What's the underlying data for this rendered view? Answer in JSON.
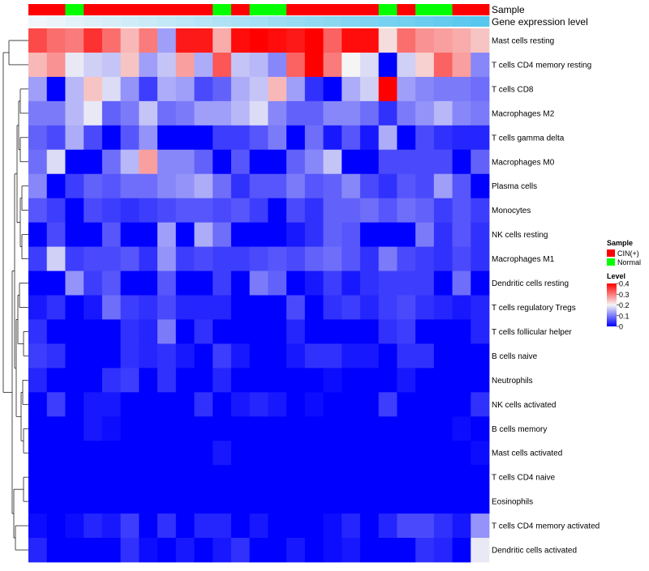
{
  "chart_data": {
    "type": "heatmap",
    "title": "",
    "annotation_labels": {
      "sample": "Sample",
      "expression": "Gene expression level"
    },
    "legend": {
      "sample_title": "Sample",
      "sample_entries": [
        {
          "name": "CIN(+)",
          "color": "#ff0000"
        },
        {
          "name": "Normal",
          "color": "#00ff00"
        }
      ],
      "level_title": "Level",
      "level_ticks": [
        0.4,
        0.3,
        0.2,
        0.1,
        0
      ],
      "level_tick_labels": [
        "0.4",
        "0.3",
        "0.2",
        "0.1",
        "0"
      ],
      "colors": {
        "low": "#0000ff",
        "mid": "#f5f5f5",
        "high": "#ff0000"
      },
      "range": [
        0,
        0.4
      ],
      "placement": "right"
    },
    "sample_groups": [
      "CIN(+)",
      "CIN(+)",
      "Normal",
      "CIN(+)",
      "CIN(+)",
      "CIN(+)",
      "CIN(+)",
      "CIN(+)",
      "CIN(+)",
      "CIN(+)",
      "Normal",
      "CIN(+)",
      "Normal",
      "Normal",
      "CIN(+)",
      "CIN(+)",
      "CIN(+)",
      "CIN(+)",
      "CIN(+)",
      "Normal",
      "CIN(+)",
      "Normal",
      "Normal",
      "CIN(+)",
      "CIN(+)"
    ],
    "rows": [
      "Mast cells resting",
      "T cells CD4 memory resting",
      "T cells CD8",
      "Macrophages M2",
      "T cells gamma delta",
      "Macrophages M0",
      "Plasma cells",
      "Monocytes",
      "NK cells resting",
      "Macrophages M1",
      "Dendritic cells resting",
      "T cells regulatory  Tregs",
      "T cells follicular helper",
      "B cells naive",
      "Neutrophils",
      "NK cells activated",
      "B cells memory",
      "Mast cells activated",
      "T cells CD4 naive",
      "Eosinophils",
      "T cells CD4 memory activated",
      "Dendritic cells activated"
    ],
    "values": [
      [
        0.34,
        0.31,
        0.3,
        0.36,
        0.31,
        0.25,
        0.3,
        0.13,
        0.38,
        0.38,
        0.26,
        0.39,
        0.4,
        0.39,
        0.38,
        0.4,
        0.32,
        0.39,
        0.39,
        0.22,
        0.31,
        0.28,
        0.27,
        0.26,
        0.24
      ],
      [
        0.25,
        0.28,
        0.19,
        0.17,
        0.16,
        0.24,
        0.13,
        0.16,
        0.27,
        0.14,
        0.33,
        0.16,
        0.15,
        0.11,
        0.32,
        0.4,
        0.3,
        0.2,
        0.18,
        0.0,
        0.17,
        0.23,
        0.32,
        0.27,
        0.11
      ],
      [
        0.13,
        0.0,
        0.15,
        0.24,
        0.18,
        0.12,
        0.05,
        0.14,
        0.13,
        0.06,
        0.08,
        0.14,
        0.16,
        0.25,
        0.13,
        0.04,
        0.0,
        0.14,
        0.17,
        0.4,
        0.13,
        0.11,
        0.1,
        0.1,
        0.09
      ],
      [
        0.1,
        0.1,
        0.15,
        0.19,
        0.08,
        0.1,
        0.16,
        0.09,
        0.1,
        0.13,
        0.13,
        0.15,
        0.18,
        0.11,
        0.08,
        0.08,
        0.11,
        0.11,
        0.09,
        0.04,
        0.1,
        0.12,
        0.15,
        0.11,
        0.1
      ],
      [
        0.08,
        0.06,
        0.14,
        0.06,
        0.0,
        0.07,
        0.12,
        0.0,
        0.0,
        0.0,
        0.05,
        0.05,
        0.07,
        0.1,
        0.0,
        0.09,
        0.02,
        0.07,
        0.02,
        0.14,
        0.0,
        0.06,
        0.04,
        0.03,
        0.03
      ],
      [
        0.09,
        0.18,
        0.0,
        0.0,
        0.09,
        0.15,
        0.27,
        0.11,
        0.11,
        0.08,
        0.0,
        0.07,
        0.0,
        0.0,
        0.08,
        0.11,
        0.16,
        0.0,
        0.0,
        0.06,
        0.06,
        0.06,
        0.06,
        0.0,
        0.08
      ],
      [
        0.11,
        0.0,
        0.05,
        0.08,
        0.07,
        0.09,
        0.09,
        0.11,
        0.12,
        0.14,
        0.09,
        0.04,
        0.07,
        0.07,
        0.1,
        0.07,
        0.08,
        0.11,
        0.06,
        0.04,
        0.07,
        0.06,
        0.13,
        0.07,
        0.0
      ],
      [
        0.07,
        0.05,
        0.0,
        0.06,
        0.05,
        0.04,
        0.05,
        0.06,
        0.07,
        0.07,
        0.06,
        0.07,
        0.05,
        0.0,
        0.06,
        0.04,
        0.08,
        0.08,
        0.09,
        0.07,
        0.09,
        0.08,
        0.05,
        0.07,
        0.05
      ],
      [
        0.0,
        0.06,
        0.0,
        0.0,
        0.07,
        0.0,
        0.0,
        0.13,
        0.0,
        0.14,
        0.09,
        0.0,
        0.0,
        0.0,
        0.02,
        0.04,
        0.08,
        0.07,
        0.0,
        0.0,
        0.0,
        0.1,
        0.04,
        0.07,
        0.04
      ],
      [
        0.05,
        0.17,
        0.05,
        0.06,
        0.06,
        0.07,
        0.04,
        0.12,
        0.05,
        0.06,
        0.05,
        0.05,
        0.06,
        0.07,
        0.06,
        0.08,
        0.09,
        0.07,
        0.04,
        0.1,
        0.06,
        0.05,
        0.04,
        0.06,
        0.04
      ],
      [
        0.0,
        0.0,
        0.12,
        0.05,
        0.07,
        0.0,
        0.0,
        0.07,
        0.0,
        0.0,
        0.05,
        0.0,
        0.1,
        0.08,
        0.0,
        0.02,
        0.05,
        0.02,
        0.04,
        0.05,
        0.05,
        0.05,
        0.0,
        0.09,
        0.0
      ],
      [
        0.02,
        0.04,
        0.0,
        0.02,
        0.09,
        0.05,
        0.04,
        0.06,
        0.03,
        0.03,
        0.03,
        0.0,
        0.0,
        0.0,
        0.06,
        0.0,
        0.04,
        0.05,
        0.03,
        0.05,
        0.06,
        0.04,
        0.03,
        0.02,
        0.03
      ],
      [
        0.04,
        0.0,
        0.0,
        0.0,
        0.0,
        0.04,
        0.03,
        0.1,
        0.0,
        0.04,
        0.0,
        0.0,
        0.0,
        0.0,
        0.03,
        0.0,
        0.0,
        0.0,
        0.0,
        0.04,
        0.05,
        0.0,
        0.0,
        0.0,
        0.03
      ],
      [
        0.05,
        0.04,
        0.0,
        0.0,
        0.0,
        0.04,
        0.03,
        0.04,
        0.02,
        0.0,
        0.05,
        0.02,
        0.0,
        0.0,
        0.02,
        0.04,
        0.04,
        0.02,
        0.02,
        0.0,
        0.04,
        0.04,
        0.0,
        0.0,
        0.0
      ],
      [
        0.03,
        0.0,
        0.0,
        0.0,
        0.04,
        0.05,
        0.0,
        0.04,
        0.0,
        0.0,
        0.03,
        0.0,
        0.0,
        0.0,
        0.0,
        0.0,
        0.01,
        0.0,
        0.0,
        0.0,
        0.02,
        0.0,
        0.0,
        0.0,
        0.0
      ],
      [
        0.0,
        0.05,
        0.0,
        0.02,
        0.02,
        0.0,
        0.0,
        0.0,
        0.0,
        0.04,
        0.0,
        0.02,
        0.03,
        0.02,
        0.0,
        0.01,
        0.0,
        0.0,
        0.0,
        0.05,
        0.0,
        0.0,
        0.0,
        0.0,
        0.04
      ],
      [
        0.0,
        0.0,
        0.0,
        0.02,
        0.01,
        0.0,
        0.0,
        0.0,
        0.0,
        0.0,
        0.0,
        0.0,
        0.0,
        0.0,
        0.0,
        0.0,
        0.0,
        0.0,
        0.0,
        0.0,
        0.0,
        0.0,
        0.0,
        0.01,
        0.0
      ],
      [
        0.0,
        0.0,
        0.0,
        0.0,
        0.0,
        0.0,
        0.0,
        0.0,
        0.0,
        0.0,
        0.02,
        0.0,
        0.0,
        0.0,
        0.0,
        0.0,
        0.0,
        0.0,
        0.0,
        0.0,
        0.0,
        0.0,
        0.0,
        0.0,
        0.01
      ],
      [
        0.0,
        0.0,
        0.0,
        0.0,
        0.0,
        0.0,
        0.0,
        0.0,
        0.0,
        0.0,
        0.0,
        0.0,
        0.0,
        0.0,
        0.0,
        0.0,
        0.0,
        0.0,
        0.0,
        0.0,
        0.0,
        0.0,
        0.0,
        0.0,
        0.0
      ],
      [
        0.0,
        0.0,
        0.0,
        0.0,
        0.0,
        0.0,
        0.0,
        0.0,
        0.0,
        0.0,
        0.0,
        0.0,
        0.0,
        0.0,
        0.0,
        0.0,
        0.0,
        0.0,
        0.0,
        0.0,
        0.0,
        0.0,
        0.0,
        0.0,
        0.0
      ],
      [
        0.01,
        0.0,
        0.01,
        0.03,
        0.02,
        0.05,
        0.0,
        0.04,
        0.0,
        0.03,
        0.03,
        0.0,
        0.02,
        0.0,
        0.0,
        0.0,
        0.01,
        0.03,
        0.0,
        0.03,
        0.06,
        0.06,
        0.04,
        0.02,
        0.12
      ],
      [
        0.03,
        0.0,
        0.0,
        0.0,
        0.0,
        0.04,
        0.01,
        0.0,
        0.02,
        0.0,
        0.02,
        0.04,
        0.0,
        0.0,
        0.02,
        0.0,
        0.01,
        0.02,
        0.0,
        0.0,
        0.0,
        0.04,
        0.03,
        0.0,
        0.19
      ]
    ]
  }
}
